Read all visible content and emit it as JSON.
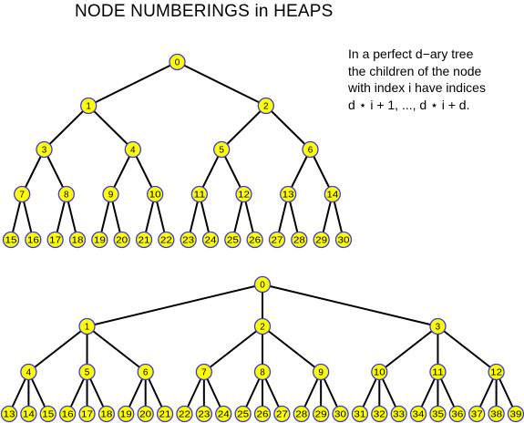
{
  "title": "NODE NUMBERINGS in HEAPS",
  "note": [
    "In a perfect d−ary tree",
    "the children of the node",
    "with index i have indices",
    "d ⋆ i + 1, ..., d ⋆ i + d."
  ],
  "colors": {
    "node_fill": "#ffff00",
    "node_stroke": "#3b3bd6",
    "edge": "#000000"
  },
  "trees": [
    {
      "arity": 2,
      "levels": 4
    },
    {
      "arity": 3,
      "levels": 3
    }
  ]
}
